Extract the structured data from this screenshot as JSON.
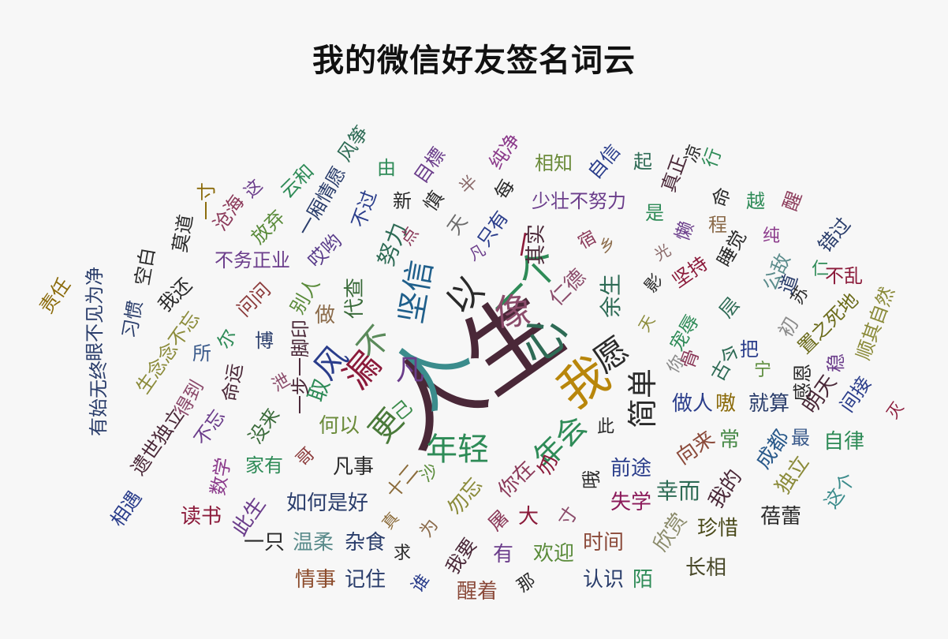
{
  "title": "我的微信好友签名词云",
  "words": [
    {
      "text": "人生",
      "color": "#4a2838",
      "size": 120
    },
    {
      "text": "人",
      "color": "#3b8c8c",
      "size": 90
    },
    {
      "text": "我",
      "color": "#b8860b",
      "size": 62
    },
    {
      "text": "心",
      "color": "#2e6b55",
      "size": 60
    },
    {
      "text": "一个",
      "color": "#2e8b57",
      "size": 50
    },
    {
      "text": "像",
      "color": "#8b4c6b",
      "size": 46
    },
    {
      "text": "以",
      "color": "#2a2a2a",
      "size": 44
    },
    {
      "text": "坚信",
      "color": "#1f5f8b",
      "size": 40
    },
    {
      "text": "漏",
      "color": "#8b1a3a",
      "size": 44
    },
    {
      "text": "不",
      "color": "#5a8a5a",
      "size": 40
    },
    {
      "text": "风",
      "color": "#2a3d8b",
      "size": 40
    },
    {
      "text": "更",
      "color": "#4a7a3a",
      "size": 40
    },
    {
      "text": "凡",
      "color": "#6b3d8b",
      "size": 36
    },
    {
      "text": "己",
      "color": "#3a8b4a",
      "size": 24
    },
    {
      "text": "年轻",
      "color": "#2e8b57",
      "size": 40
    },
    {
      "text": "年会",
      "color": "#2e8b57",
      "size": 38
    },
    {
      "text": "愿",
      "color": "#2a2a2a",
      "size": 42
    },
    {
      "text": "简单",
      "color": "#2a2a2a",
      "size": 38
    },
    {
      "text": "此",
      "color": "#2a2a2a",
      "size": 22
    },
    {
      "text": "余生",
      "color": "#2e6b55",
      "size": 28
    },
    {
      "text": "仁德",
      "color": "#8b4c6b",
      "size": 26
    },
    {
      "text": "其实",
      "color": "#4a2838",
      "size": 26
    },
    {
      "text": "一",
      "color": "#8b1a3a",
      "size": 32
    },
    {
      "text": "代查",
      "color": "#3a6b3a",
      "size": 26
    },
    {
      "text": "努力",
      "color": "#2e6b55",
      "size": 28
    },
    {
      "text": "做",
      "color": "#8b6b4a",
      "size": 26
    },
    {
      "text": "别人",
      "color": "#5a8b3a",
      "size": 24
    },
    {
      "text": "取",
      "color": "#2e8b57",
      "size": 28
    },
    {
      "text": "何以",
      "color": "#6b8b3a",
      "size": 26
    },
    {
      "text": "凡事",
      "color": "#2a2a2a",
      "size": 26
    },
    {
      "text": "一步一脚印",
      "color": "#4a2838",
      "size": 24
    },
    {
      "text": "十二",
      "color": "#8b6b3a",
      "size": 24
    },
    {
      "text": "沙",
      "color": "#5a8b3a",
      "size": 22
    },
    {
      "text": "勿忘",
      "color": "#8b8b3a",
      "size": 26
    },
    {
      "text": "你在",
      "color": "#8b3a5a",
      "size": 26
    },
    {
      "text": "勿",
      "color": "#8b1a3a",
      "size": 26
    },
    {
      "text": "哦",
      "color": "#2a2a2a",
      "size": 24
    },
    {
      "text": "前途",
      "color": "#2a3d8b",
      "size": 26
    },
    {
      "text": "失学",
      "color": "#8b1a5a",
      "size": 26
    },
    {
      "text": "幸而",
      "color": "#2e6b55",
      "size": 28
    },
    {
      "text": "我的",
      "color": "#4a2838",
      "size": 26
    },
    {
      "text": "成都",
      "color": "#2a5a8b",
      "size": 26
    },
    {
      "text": "常",
      "color": "#4a8b4a",
      "size": 26
    },
    {
      "text": "向来",
      "color": "#8b4a3a",
      "size": 26
    },
    {
      "text": "做人",
      "color": "#2a3d8b",
      "size": 26
    },
    {
      "text": "嗷",
      "color": "#8b6b0b",
      "size": 26
    },
    {
      "text": "就算",
      "color": "#2a3d6b",
      "size": 26
    },
    {
      "text": "古今",
      "color": "#2e6b55",
      "size": 24
    },
    {
      "text": "宁",
      "color": "#5a8b3a",
      "size": 22
    },
    {
      "text": "骨",
      "color": "#8b3a5a",
      "size": 24
    },
    {
      "text": "最",
      "color": "#3a5a8b",
      "size": 24
    },
    {
      "text": "感恩",
      "color": "#2a2a2a",
      "size": 24
    },
    {
      "text": "明天",
      "color": "#4a2838",
      "size": 26
    },
    {
      "text": "稳",
      "color": "#6b3d8b",
      "size": 24
    },
    {
      "text": "自律",
      "color": "#2e8b57",
      "size": 26
    },
    {
      "text": "独立",
      "color": "#8b8b3a",
      "size": 26
    },
    {
      "text": "蓓蕾",
      "color": "#2a2a2a",
      "size": 26
    },
    {
      "text": "这个",
      "color": "#3a8b8b",
      "size": 24
    },
    {
      "text": "珍惜",
      "color": "#4a4a1a",
      "size": 26
    },
    {
      "text": "欣赏",
      "color": "#8b8b6b",
      "size": 26
    },
    {
      "text": "长相",
      "color": "#4a4a2a",
      "size": 26
    },
    {
      "text": "时间",
      "color": "#8b4a3a",
      "size": 26
    },
    {
      "text": "认识",
      "color": "#2a3d6b",
      "size": 26
    },
    {
      "text": "陌",
      "color": "#2e8b57",
      "size": 26
    },
    {
      "text": "欢迎",
      "color": "#5a8b3a",
      "size": 26
    },
    {
      "text": "有",
      "color": "#6b3d8b",
      "size": 26
    },
    {
      "text": "那",
      "color": "#2a2a2a",
      "size": 22
    },
    {
      "text": "醒着",
      "color": "#8b4a3a",
      "size": 26
    },
    {
      "text": "谁",
      "color": "#2a3d8b",
      "size": 22
    },
    {
      "text": "我要",
      "color": "#4a2838",
      "size": 24
    },
    {
      "text": "屠",
      "color": "#8b3a5a",
      "size": 24
    },
    {
      "text": "大",
      "color": "#8b1a3a",
      "size": 26
    },
    {
      "text": "寸",
      "color": "#8b4c6b",
      "size": 24
    },
    {
      "text": "为",
      "color": "#8b6b4a",
      "size": 22
    },
    {
      "text": "求",
      "color": "#2a2a2a",
      "size": 22
    },
    {
      "text": "真",
      "color": "#8b6b3a",
      "size": 20
    },
    {
      "text": "情事",
      "color": "#8b4a2a",
      "size": 26
    },
    {
      "text": "记住",
      "color": "#2a3d6b",
      "size": 26
    },
    {
      "text": "杂食",
      "color": "#2a3d6b",
      "size": 26
    },
    {
      "text": "温柔",
      "color": "#5a8b8b",
      "size": 26
    },
    {
      "text": "一只",
      "color": "#2a2a2a",
      "size": 26
    },
    {
      "text": "如何是好",
      "color": "#2a3d6b",
      "size": 26
    },
    {
      "text": "此生",
      "color": "#6b3d8b",
      "size": 26
    },
    {
      "text": "读书",
      "color": "#8b1a3a",
      "size": 26
    },
    {
      "text": "数学",
      "color": "#8b3a8b",
      "size": 24
    },
    {
      "text": "家有",
      "color": "#2e8b57",
      "size": 24
    },
    {
      "text": "哥",
      "color": "#8b3a3a",
      "size": 22
    },
    {
      "text": "不忘",
      "color": "#6b3d8b",
      "size": 24
    },
    {
      "text": "没来",
      "color": "#3a6b3a",
      "size": 24
    },
    {
      "text": "得到",
      "color": "#8b4a6b",
      "size": 24
    },
    {
      "text": "命运",
      "color": "#4a2838",
      "size": 24
    },
    {
      "text": "泄",
      "color": "#8b4c6b",
      "size": 22
    },
    {
      "text": "博",
      "color": "#2a3d6b",
      "size": 24
    },
    {
      "text": "尔",
      "color": "#2e8b57",
      "size": 24
    },
    {
      "text": "所",
      "color": "#3a5a8b",
      "size": 24
    },
    {
      "text": "生念念不忘",
      "color": "#8b8b3a",
      "size": 24
    },
    {
      "text": "问问",
      "color": "#8b3a3a",
      "size": 24
    },
    {
      "text": "习惯",
      "color": "#2a3d6b",
      "size": 24
    },
    {
      "text": "我还",
      "color": "#2a2a2a",
      "size": 24
    },
    {
      "text": "空白",
      "color": "#2a2a2a",
      "size": 24
    },
    {
      "text": "莫道",
      "color": "#2a2a2a",
      "size": 24
    },
    {
      "text": "一寸",
      "color": "#8b6b0b",
      "size": 24
    },
    {
      "text": "沧海",
      "color": "#8b3a5a",
      "size": 24
    },
    {
      "text": "放弃",
      "color": "#5a8b3a",
      "size": 24
    },
    {
      "text": "这",
      "color": "#6b3d8b",
      "size": 22
    },
    {
      "text": "不务正业",
      "color": "#6b3d8b",
      "size": 24
    },
    {
      "text": "哎哟",
      "color": "#5a3d8b",
      "size": 24
    },
    {
      "text": "不过",
      "color": "#2a3d8b",
      "size": 24
    },
    {
      "text": "云和",
      "color": "#2e8b57",
      "size": 24
    },
    {
      "text": "一厢情愿",
      "color": "#2a3d6b",
      "size": 24
    },
    {
      "text": "风筝",
      "color": "#2e6b55",
      "size": 24
    },
    {
      "text": "由",
      "color": "#2e8b57",
      "size": 24
    },
    {
      "text": "新",
      "color": "#2a2a2a",
      "size": 24
    },
    {
      "text": "慎",
      "color": "#2a2a2a",
      "size": 24
    },
    {
      "text": "目標",
      "color": "#6b3d8b",
      "size": 24
    },
    {
      "text": "点",
      "color": "#8b3a5a",
      "size": 22
    },
    {
      "text": "天",
      "color": "#6b6b6b",
      "size": 24
    },
    {
      "text": "只有",
      "color": "#2a3d8b",
      "size": 24
    },
    {
      "text": "半",
      "color": "#8b6b6b",
      "size": 22
    },
    {
      "text": "每",
      "color": "#2a2a2a",
      "size": 24
    },
    {
      "text": "纯净",
      "color": "#8b3a8b",
      "size": 24
    },
    {
      "text": "相知",
      "color": "#6b8b3a",
      "size": 24
    },
    {
      "text": "自信",
      "color": "#2a3d8b",
      "size": 24
    },
    {
      "text": "起",
      "color": "#2e6b55",
      "size": 24
    },
    {
      "text": "少壮不努力",
      "color": "#6b3d8b",
      "size": 24
    },
    {
      "text": "宿",
      "color": "#8b3a5a",
      "size": 22
    },
    {
      "text": "真正",
      "color": "#4a2838",
      "size": 24
    },
    {
      "text": "是",
      "color": "#2e8b57",
      "size": 24
    },
    {
      "text": "凉",
      "color": "#2a2a2a",
      "size": 22
    },
    {
      "text": "懒",
      "color": "#6b3d8b",
      "size": 24
    },
    {
      "text": "命",
      "color": "#2a2a2a",
      "size": 24
    },
    {
      "text": "行",
      "color": "#2e8b57",
      "size": 24
    },
    {
      "text": "越",
      "color": "#2e8b57",
      "size": 24
    },
    {
      "text": "醒",
      "color": "#8b3a5a",
      "size": 24
    },
    {
      "text": "程",
      "color": "#8b6b4a",
      "size": 24
    },
    {
      "text": "睡觉",
      "color": "#2a2a2a",
      "size": 24
    },
    {
      "text": "纯",
      "color": "#8b3a8b",
      "size": 22
    },
    {
      "text": "错过",
      "color": "#2a3d6b",
      "size": 24
    },
    {
      "text": "公敌",
      "color": "#5a8b8b",
      "size": 24
    },
    {
      "text": "苏",
      "color": "#2a2a2a",
      "size": 22
    },
    {
      "text": "仁",
      "color": "#2e8b57",
      "size": 22
    },
    {
      "text": "道",
      "color": "#2a3d6b",
      "size": 24
    },
    {
      "text": "不乱",
      "color": "#8b1a3a",
      "size": 24
    },
    {
      "text": "坚持",
      "color": "#8b1a3a",
      "size": 24
    },
    {
      "text": "层",
      "color": "#2e6b55",
      "size": 24
    },
    {
      "text": "把",
      "color": "#2a3d8b",
      "size": 24
    },
    {
      "text": "初",
      "color": "#8b8b8b",
      "size": 24
    },
    {
      "text": "宠辱",
      "color": "#2e8b57",
      "size": 24
    },
    {
      "text": "你",
      "color": "#8b8b8b",
      "size": 22
    },
    {
      "text": "天",
      "color": "#8b8b3a",
      "size": 20
    },
    {
      "text": "影",
      "color": "#2a2a2a",
      "size": 22
    },
    {
      "text": "置之死地",
      "color": "#6b6b1a",
      "size": 24
    },
    {
      "text": "顺其自然",
      "color": "#8b8b3a",
      "size": 24
    },
    {
      "text": "责任",
      "color": "#8b6b0b",
      "size": 24
    },
    {
      "text": "眼不见为净",
      "color": "#2a3d6b",
      "size": 24
    },
    {
      "text": "有始无终",
      "color": "#2a3d6b",
      "size": 24
    },
    {
      "text": "遗世独立",
      "color": "#4a2838",
      "size": 24
    },
    {
      "text": "相遇",
      "color": "#2a3d8b",
      "size": 24
    },
    {
      "text": "间接",
      "color": "#2a3d8b",
      "size": 24
    },
    {
      "text": "灭",
      "color": "#8b1a3a",
      "size": 20
    },
    {
      "text": "乡",
      "color": "#8b6b4a",
      "size": 20
    },
    {
      "text": "光",
      "color": "#8b6b6b",
      "size": 20
    },
    {
      "text": "凡",
      "color": "#6b3d8b",
      "size": 20
    }
  ]
}
